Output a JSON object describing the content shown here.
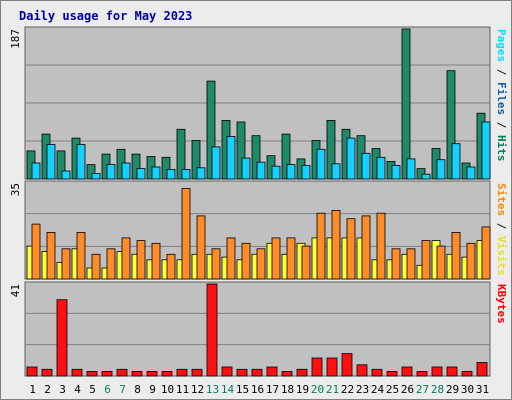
{
  "chart_data": {
    "type": "bar",
    "title": "Daily usage for May 2023",
    "categories": [
      "1",
      "2",
      "3",
      "4",
      "5",
      "6",
      "7",
      "8",
      "9",
      "10",
      "11",
      "12",
      "13",
      "14",
      "15",
      "16",
      "17",
      "18",
      "19",
      "20",
      "21",
      "22",
      "23",
      "24",
      "25",
      "26",
      "27",
      "28",
      "29",
      "30",
      "31"
    ],
    "weekend_days": [
      "6",
      "7",
      "13",
      "14",
      "20",
      "21",
      "27",
      "28"
    ],
    "panels": [
      {
        "id": "hits",
        "ymax_label": "187",
        "ymax": 187,
        "right_label": [
          {
            "text": "Pages",
            "color": "#00e0ff"
          },
          {
            "text": " / ",
            "color": "#202020"
          },
          {
            "text": "Files",
            "color": "#1060a0"
          },
          {
            "text": " / ",
            "color": "#202020"
          },
          {
            "text": "Hits",
            "color": "#008060"
          }
        ],
        "series": [
          {
            "name": "Hits",
            "color": "#1f8a6a",
            "values": [
              35,
              56,
              35,
              51,
              18,
              31,
              37,
              31,
              28,
              27,
              62,
              48,
              122,
              73,
              71,
              54,
              29,
              56,
              25,
              48,
              73,
              62,
              54,
              38,
              22,
              187,
              13,
              38,
              135,
              20,
              82
            ]
          },
          {
            "name": "Files",
            "color": "#18d0ff",
            "values": [
              20,
              43,
              10,
              43,
              7,
              18,
              20,
              13,
              15,
              12,
              12,
              14,
              40,
              53,
              26,
              21,
              16,
              18,
              17,
              37,
              19,
              51,
              32,
              27,
              17,
              25,
              6,
              24,
              44,
              15,
              71
            ]
          }
        ]
      },
      {
        "id": "visits",
        "ymax_label": "35",
        "ymax": 35,
        "right_label": [
          {
            "text": "Sites",
            "color": "#ff8800"
          },
          {
            "text": " / ",
            "color": "#202020"
          },
          {
            "text": "Visits",
            "color": "#e8e020"
          }
        ],
        "series": [
          {
            "name": "Visits",
            "color": "#ffff40",
            "values": [
              12,
              10,
              6,
              11,
              4,
              4,
              10,
              9,
              7,
              7,
              7,
              9,
              9,
              8,
              7,
              9,
              13,
              9,
              13,
              15,
              15,
              15,
              15,
              7,
              7,
              9,
              5,
              14,
              9,
              8,
              14
            ]
          },
          {
            "name": "Sites",
            "color": "#ff8c28",
            "values": [
              20,
              17,
              11,
              17,
              9,
              11,
              15,
              14,
              13,
              9,
              33,
              23,
              11,
              15,
              13,
              11,
              15,
              15,
              12,
              24,
              25,
              22,
              23,
              24,
              11,
              11,
              14,
              12,
              17,
              13,
              19
            ]
          }
        ]
      },
      {
        "id": "kbytes",
        "ymax_label": "41",
        "ymax": 41,
        "right_label": [
          {
            "text": "KBytes",
            "color": "#ff0000"
          }
        ],
        "series": [
          {
            "name": "KBytes",
            "color": "#ff1010",
            "values": [
              4,
              3,
              34,
              3,
              2,
              2,
              3,
              2,
              2,
              2,
              3,
              3,
              41,
              4,
              3,
              3,
              4,
              2,
              3,
              8,
              8,
              10,
              5,
              3,
              2,
              4,
              2,
              4,
              4,
              2,
              6
            ]
          }
        ]
      }
    ],
    "colors": {
      "plot_background": "#c0c0c0",
      "grid": "#808080",
      "weekday_label": "#000000",
      "weekend_label": "#008060"
    }
  }
}
